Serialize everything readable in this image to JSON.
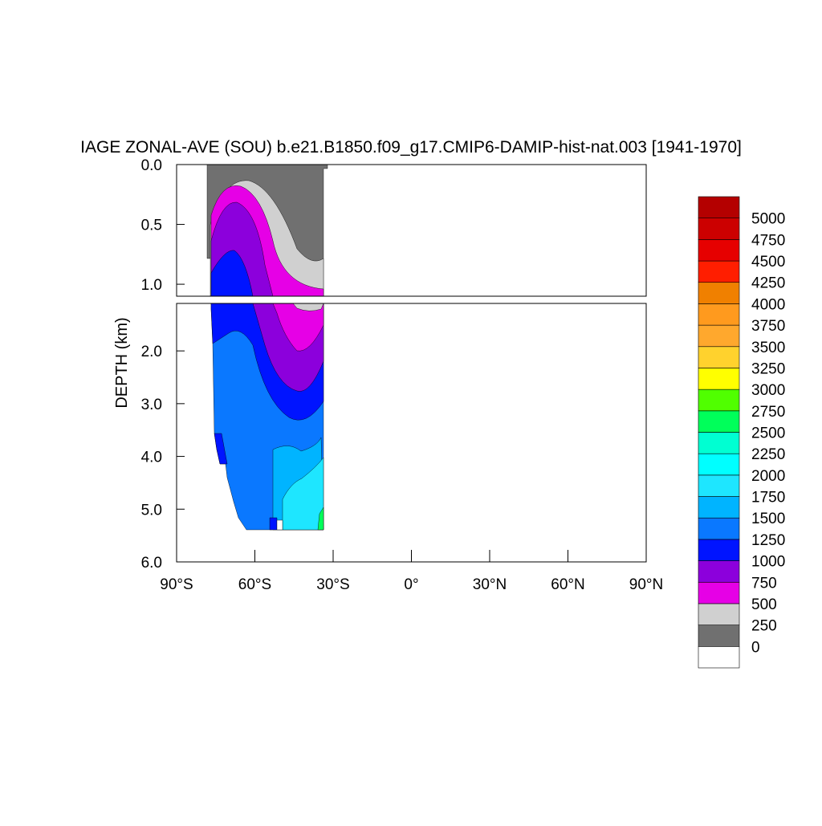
{
  "chart_data": {
    "type": "contour",
    "title": "IAGE ZONAL-AVE (SOU) b.e21.B1850.f09_g17.CMIP6-DAMIP-hist-nat.003 [1941-1970]",
    "ylabel": "DEPTH (km)",
    "xlim": [
      -90,
      90
    ],
    "xticks": [
      {
        "value": -90,
        "label": "90°S"
      },
      {
        "value": -60,
        "label": "60°S"
      },
      {
        "value": -30,
        "label": "30°S"
      },
      {
        "value": 0,
        "label": "0°"
      },
      {
        "value": 30,
        "label": "30°N"
      },
      {
        "value": 60,
        "label": "60°N"
      },
      {
        "value": 90,
        "label": "90°N"
      }
    ],
    "upper_ylim": [
      0,
      1.1
    ],
    "upper_yticks": [
      {
        "value": 0,
        "label": "0.0"
      },
      {
        "value": 0.5,
        "label": "0.5"
      },
      {
        "value": 1,
        "label": "1.0"
      }
    ],
    "lower_ylim": [
      1.1,
      6
    ],
    "lower_yticks": [
      {
        "value": 2,
        "label": "2.0"
      },
      {
        "value": 3,
        "label": "3.0"
      },
      {
        "value": 4,
        "label": "4.0"
      },
      {
        "value": 5,
        "label": "5.0"
      },
      {
        "value": 6,
        "label": "6.0"
      }
    ],
    "levels": [
      0,
      250,
      500,
      750,
      1000,
      1250,
      1500,
      1750,
      2000,
      2250,
      2500,
      2750,
      3000,
      3250,
      3500,
      3750,
      4000,
      4250,
      4500,
      4750,
      5000
    ],
    "colors": [
      "#ffffff",
      "#707070",
      "#d0d0d0",
      "#e600e6",
      "#8c00dc",
      "#0014ff",
      "#0a78ff",
      "#00b4ff",
      "#1ee6ff",
      "#00ffff",
      "#00ffd2",
      "#00ff5a",
      "#50ff00",
      "#ffff00",
      "#ffd22d",
      "#ffa82d",
      "#ff9a1e",
      "#f08000",
      "#ff1e00",
      "#e60000",
      "#cc0000",
      "#b40000"
    ]
  }
}
